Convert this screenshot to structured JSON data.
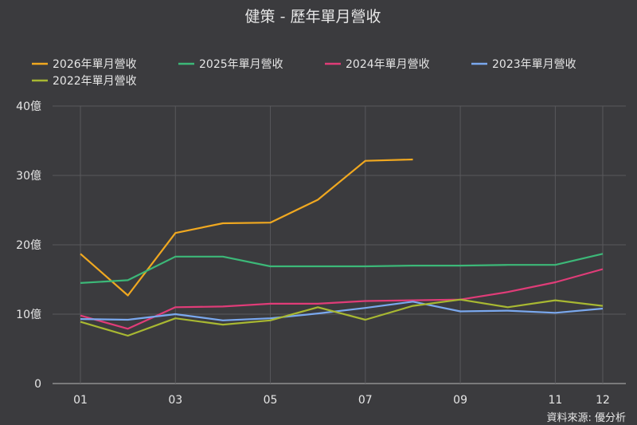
{
  "chart_data": {
    "type": "line",
    "title": "健策 - 歷年單月營收",
    "source": "資料來源: 優分析",
    "x": [
      "01",
      "02",
      "03",
      "04",
      "05",
      "06",
      "07",
      "08",
      "09",
      "10",
      "11",
      "12"
    ],
    "x_tick_labels": [
      "01",
      "03",
      "05",
      "07",
      "09",
      "11",
      "12"
    ],
    "ylim": [
      0,
      40
    ],
    "y_ticks": [
      0,
      10,
      20,
      30,
      40
    ],
    "y_tick_labels": [
      "0",
      "10億",
      "20億",
      "30億",
      "40億"
    ],
    "grid": true,
    "legend": "top",
    "series": [
      {
        "name": "2026年單月營收",
        "color": "#f0a820",
        "values": [
          18.7,
          12.7,
          21.7,
          23.1,
          23.2,
          26.5,
          32.1,
          32.3,
          null,
          null,
          null,
          null
        ]
      },
      {
        "name": "2025年單月營收",
        "color": "#3cb878",
        "values": [
          14.5,
          14.9,
          18.3,
          18.3,
          16.9,
          16.9,
          16.9,
          17.0,
          17.0,
          17.1,
          17.1,
          18.7
        ]
      },
      {
        "name": "2024年單月營收",
        "color": "#e03c78",
        "values": [
          9.8,
          7.9,
          11.0,
          11.1,
          11.5,
          11.5,
          11.9,
          12.0,
          12.1,
          13.2,
          14.6,
          16.5
        ]
      },
      {
        "name": "2023年單月營收",
        "color": "#7aa8ee",
        "values": [
          9.3,
          9.2,
          10.0,
          9.1,
          9.4,
          10.1,
          10.9,
          11.8,
          10.4,
          10.5,
          10.2,
          10.8
        ]
      },
      {
        "name": "2022年單月營收",
        "color": "#a8b832",
        "values": [
          8.9,
          6.9,
          9.4,
          8.5,
          9.1,
          11.0,
          9.2,
          11.2,
          12.1,
          11.0,
          12.0,
          11.2
        ]
      }
    ]
  }
}
